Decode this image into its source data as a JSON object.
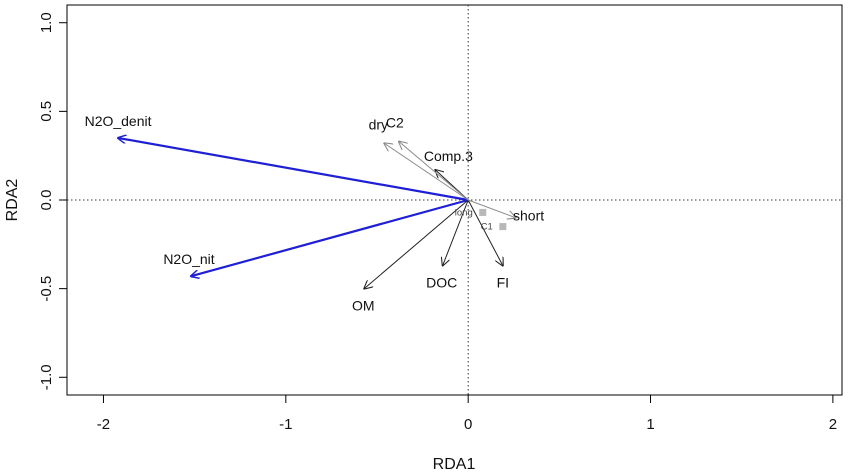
{
  "chart_data": {
    "type": "scatter",
    "subtype": "rda-biplot",
    "xlabel": "RDA1",
    "ylabel": "RDA2",
    "xlim": [
      -2.2,
      2.05
    ],
    "ylim": [
      -1.1,
      1.1
    ],
    "x_ticks": [
      -2,
      -1,
      0,
      1,
      2
    ],
    "y_ticks": [
      -1.0,
      -0.5,
      0.0,
      0.5,
      1.0
    ],
    "x_tick_labels": [
      "-2",
      "-1",
      "0",
      "1",
      "2"
    ],
    "y_tick_labels": [
      "-1.0",
      "-0.5",
      "0.0",
      "0.5",
      "1.0"
    ],
    "reference_lines": {
      "x": 0,
      "y": 0,
      "style": "dotted"
    },
    "response_arrows": [
      {
        "label": "N2O_denit",
        "x": -1.92,
        "y": 0.35,
        "color": "#1f1fd6"
      },
      {
        "label": "N2O_nit",
        "x": -1.52,
        "y": -0.43,
        "color": "#1f1fd6"
      }
    ],
    "explanatory_arrows": [
      {
        "label": "OM",
        "x": -0.57,
        "y": -0.5,
        "color": "#222222"
      },
      {
        "label": "DOC",
        "x": -0.14,
        "y": -0.37,
        "color": "#222222"
      },
      {
        "label": "FI",
        "x": 0.19,
        "y": -0.37,
        "color": "#222222"
      },
      {
        "label": "Comp.3",
        "x": -0.18,
        "y": 0.17,
        "color": "#222222"
      }
    ],
    "factor_arrows": [
      {
        "label": "dry",
        "x": -0.46,
        "y": 0.32,
        "color": "#8a8a8a"
      },
      {
        "label": "C2",
        "x": -0.38,
        "y": 0.33,
        "color": "#8a8a8a"
      },
      {
        "label": "short",
        "x": 0.26,
        "y": -0.1,
        "color": "#8a8a8a"
      }
    ],
    "centroids": [
      {
        "label": "long",
        "x": 0.08,
        "y": -0.07,
        "color": "#b8b8b8"
      },
      {
        "label": "C1",
        "x": 0.19,
        "y": -0.15,
        "color": "#b8b8b8"
      }
    ]
  }
}
